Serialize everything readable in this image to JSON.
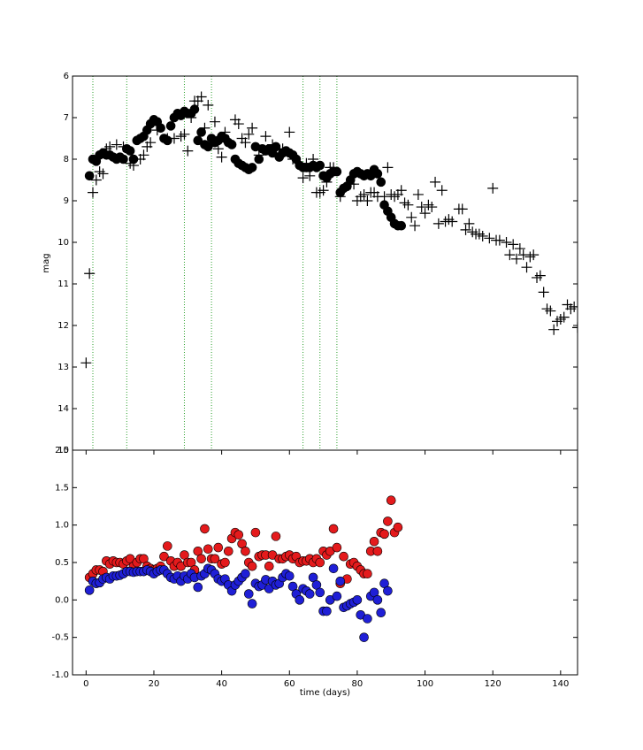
{
  "chart_data": [
    {
      "type": "scatter",
      "ylabel": "mag",
      "xlim": [
        -4,
        145
      ],
      "ylim": [
        15,
        6
      ],
      "yticks": [
        6,
        7,
        8,
        9,
        10,
        11,
        12,
        13,
        14,
        15
      ],
      "vlines": [
        2,
        12,
        29,
        37,
        64,
        69,
        74
      ],
      "vline_color": "#2ca02c",
      "series": [
        {
          "marker": "plus",
          "color": "#000000",
          "x": [
            0,
            1,
            2,
            3,
            4,
            5,
            6,
            7,
            9,
            11,
            13,
            14,
            16,
            17,
            18,
            19,
            21,
            24,
            26,
            28,
            29,
            30,
            31,
            32,
            33,
            34,
            35,
            36,
            38,
            39,
            40,
            41,
            42,
            44,
            45,
            46,
            47,
            48,
            49,
            51,
            53,
            55,
            57,
            58,
            60,
            61,
            63,
            64,
            65,
            66,
            67,
            68,
            69,
            70,
            71,
            72,
            73,
            75,
            76,
            78,
            79,
            80,
            81,
            82,
            83,
            84,
            85,
            86,
            88,
            89,
            90,
            91,
            92,
            93,
            94,
            95,
            96,
            97,
            98,
            99,
            100,
            101,
            102,
            103,
            104,
            105,
            106,
            107,
            108,
            110,
            111,
            112,
            113,
            114,
            115,
            116,
            117,
            119,
            120,
            121,
            122,
            124,
            125,
            126,
            127,
            128,
            129,
            130,
            131,
            132,
            133,
            134,
            135,
            136,
            137,
            138,
            139,
            140,
            141,
            142,
            143,
            144,
            145
          ],
          "values": [
            12.9,
            10.75,
            8.8,
            8.5,
            8.3,
            8.35,
            7.75,
            7.7,
            7.65,
            7.7,
            8.1,
            8.15,
            8.0,
            7.9,
            7.7,
            7.6,
            7.3,
            7.5,
            7.5,
            7.45,
            7.4,
            7.8,
            7.0,
            6.6,
            6.6,
            6.5,
            7.25,
            6.7,
            7.1,
            7.75,
            7.95,
            7.35,
            7.55,
            7.05,
            7.15,
            7.5,
            7.6,
            7.4,
            7.25,
            7.9,
            7.45,
            7.65,
            7.85,
            7.75,
            7.35,
            8.0,
            8.1,
            8.45,
            8.1,
            8.4,
            8.0,
            8.8,
            8.8,
            8.75,
            8.55,
            8.2,
            8.2,
            8.9,
            8.75,
            8.6,
            8.6,
            9.0,
            8.9,
            8.85,
            9.0,
            8.8,
            8.8,
            8.9,
            8.9,
            8.2,
            8.85,
            8.9,
            8.85,
            8.75,
            9.05,
            9.1,
            9.4,
            9.6,
            8.85,
            9.15,
            9.3,
            9.1,
            9.15,
            8.55,
            9.55,
            8.75,
            9.5,
            9.45,
            9.5,
            9.2,
            9.2,
            9.7,
            9.55,
            9.75,
            9.8,
            9.8,
            9.85,
            9.9,
            8.7,
            9.95,
            9.95,
            10.0,
            10.3,
            10.05,
            10.4,
            10.15,
            10.3,
            10.6,
            10.35,
            10.3,
            10.85,
            10.8,
            11.2,
            11.6,
            11.65,
            12.1,
            11.9,
            11.85,
            11.8,
            11.5,
            11.6,
            11.55,
            12.05
          ]
        },
        {
          "marker": "circle",
          "color": "#000000",
          "x": [
            1,
            2,
            3,
            4,
            5,
            6,
            7,
            8,
            9,
            10,
            11,
            12,
            13,
            14,
            15,
            16,
            17,
            18,
            19,
            20,
            21,
            22,
            23,
            24,
            25,
            26,
            27,
            28,
            29,
            30,
            31,
            32,
            33,
            34,
            35,
            36,
            37,
            38,
            39,
            40,
            41,
            42,
            43,
            44,
            45,
            46,
            47,
            48,
            49,
            50,
            51,
            52,
            53,
            54,
            55,
            56,
            57,
            58,
            59,
            60,
            61,
            62,
            63,
            64,
            65,
            66,
            67,
            68,
            69,
            70,
            71,
            72,
            73,
            74,
            75,
            76,
            77,
            78,
            79,
            80,
            81,
            82,
            83,
            84,
            85,
            86,
            87,
            88,
            89,
            90,
            91,
            92,
            93
          ],
          "values": [
            8.4,
            8.0,
            8.05,
            7.9,
            7.85,
            7.9,
            7.9,
            7.95,
            8.0,
            7.95,
            8.0,
            7.75,
            7.8,
            8.0,
            7.55,
            7.5,
            7.45,
            7.3,
            7.15,
            7.05,
            7.1,
            7.25,
            7.5,
            7.55,
            7.2,
            7.0,
            6.9,
            6.95,
            6.85,
            6.9,
            6.9,
            6.8,
            7.55,
            7.35,
            7.65,
            7.7,
            7.5,
            7.6,
            7.55,
            7.45,
            7.5,
            7.6,
            7.65,
            8.0,
            8.1,
            8.15,
            8.2,
            8.25,
            8.2,
            7.7,
            8.0,
            7.75,
            7.8,
            7.75,
            7.85,
            7.7,
            7.95,
            7.85,
            7.8,
            7.85,
            7.9,
            8.0,
            8.15,
            8.2,
            8.2,
            8.2,
            8.15,
            8.2,
            8.15,
            8.4,
            8.45,
            8.35,
            8.3,
            8.3,
            8.8,
            8.7,
            8.65,
            8.5,
            8.35,
            8.3,
            8.35,
            8.4,
            8.35,
            8.4,
            8.25,
            8.35,
            8.55,
            9.1,
            9.25,
            9.4,
            9.55,
            9.6,
            9.6
          ]
        }
      ]
    },
    {
      "type": "scatter",
      "xlabel": "time (days)",
      "xlim": [
        -4,
        145
      ],
      "ylim": [
        -1,
        2
      ],
      "xticks": [
        0,
        20,
        40,
        60,
        80,
        100,
        120,
        140
      ],
      "yticks": [
        {
          "value": -1,
          "label": "-1.0"
        },
        -0.5,
        {
          "value": 0,
          "label": "0.0"
        },
        0.5,
        {
          "value": 1,
          "label": "1.0"
        },
        1.5,
        {
          "value": 2,
          "label": "2.0"
        }
      ],
      "series": [
        {
          "marker": "circle",
          "color": "#e41a1c",
          "x": [
            1,
            2,
            3,
            4,
            5,
            6,
            7,
            8,
            9,
            10,
            11,
            12,
            13,
            14,
            15,
            16,
            17,
            18,
            19,
            20,
            21,
            22,
            23,
            24,
            25,
            26,
            27,
            28,
            29,
            30,
            31,
            32,
            33,
            34,
            35,
            36,
            37,
            38,
            39,
            40,
            41,
            42,
            43,
            44,
            45,
            46,
            47,
            48,
            49,
            50,
            51,
            52,
            53,
            54,
            55,
            56,
            57,
            58,
            59,
            60,
            61,
            62,
            63,
            64,
            65,
            66,
            67,
            68,
            69,
            70,
            71,
            72,
            73,
            74,
            75,
            76,
            77,
            78,
            79,
            80,
            81,
            82,
            83,
            84,
            85,
            86,
            87,
            88,
            89,
            90,
            91,
            92
          ],
          "values": [
            0.3,
            0.35,
            0.4,
            0.4,
            0.38,
            0.52,
            0.48,
            0.52,
            0.5,
            0.5,
            0.48,
            0.52,
            0.55,
            0.45,
            0.5,
            0.55,
            0.55,
            0.45,
            0.42,
            0.4,
            0.42,
            0.45,
            0.58,
            0.72,
            0.52,
            0.45,
            0.5,
            0.45,
            0.6,
            0.5,
            0.5,
            0.4,
            0.65,
            0.55,
            0.95,
            0.68,
            0.55,
            0.55,
            0.7,
            0.48,
            0.5,
            0.65,
            0.82,
            0.9,
            0.87,
            0.75,
            0.65,
            0.5,
            0.45,
            0.9,
            0.58,
            0.6,
            0.6,
            0.45,
            0.6,
            0.85,
            0.55,
            0.55,
            0.58,
            0.6,
            0.55,
            0.58,
            0.5,
            0.52,
            0.52,
            0.55,
            0.5,
            0.55,
            0.5,
            0.65,
            0.6,
            0.65,
            0.95,
            0.7,
            0.22,
            0.58,
            0.28,
            0.48,
            0.5,
            0.45,
            0.4,
            0.35,
            0.35,
            0.65,
            0.78,
            0.65,
            0.9,
            0.88,
            1.05,
            1.33,
            0.9,
            0.97
          ]
        },
        {
          "marker": "circle",
          "color": "#1f1fd6",
          "x": [
            1,
            2,
            3,
            4,
            5,
            6,
            7,
            8,
            9,
            10,
            11,
            12,
            13,
            14,
            15,
            16,
            17,
            18,
            19,
            20,
            21,
            22,
            23,
            24,
            25,
            26,
            27,
            28,
            29,
            30,
            31,
            32,
            33,
            34,
            35,
            36,
            37,
            38,
            39,
            40,
            41,
            42,
            43,
            44,
            45,
            46,
            47,
            48,
            49,
            50,
            51,
            52,
            53,
            54,
            55,
            56,
            57,
            58,
            59,
            60,
            61,
            62,
            63,
            64,
            65,
            66,
            67,
            68,
            69,
            70,
            71,
            72,
            73,
            74,
            75,
            76,
            77,
            78,
            79,
            80,
            81,
            82,
            83,
            84,
            85,
            86,
            87,
            88,
            89
          ],
          "values": [
            0.13,
            0.25,
            0.22,
            0.23,
            0.28,
            0.3,
            0.28,
            0.32,
            0.32,
            0.33,
            0.35,
            0.38,
            0.38,
            0.37,
            0.38,
            0.38,
            0.38,
            0.4,
            0.38,
            0.35,
            0.38,
            0.4,
            0.4,
            0.35,
            0.3,
            0.28,
            0.32,
            0.25,
            0.32,
            0.28,
            0.35,
            0.3,
            0.17,
            0.32,
            0.35,
            0.42,
            0.4,
            0.35,
            0.28,
            0.25,
            0.28,
            0.2,
            0.12,
            0.2,
            0.25,
            0.3,
            0.35,
            0.08,
            -0.05,
            0.22,
            0.18,
            0.2,
            0.27,
            0.15,
            0.25,
            0.2,
            0.22,
            0.3,
            0.35,
            0.32,
            0.18,
            0.08,
            0.0,
            0.15,
            0.12,
            0.08,
            0.3,
            0.2,
            0.1,
            -0.15,
            -0.15,
            0.0,
            0.42,
            0.05,
            0.25,
            -0.1,
            -0.08,
            -0.05,
            -0.03,
            0.0,
            -0.2,
            -0.5,
            -0.25,
            0.05,
            0.1,
            0.0,
            -0.17,
            0.22,
            0.12
          ]
        }
      ]
    }
  ]
}
